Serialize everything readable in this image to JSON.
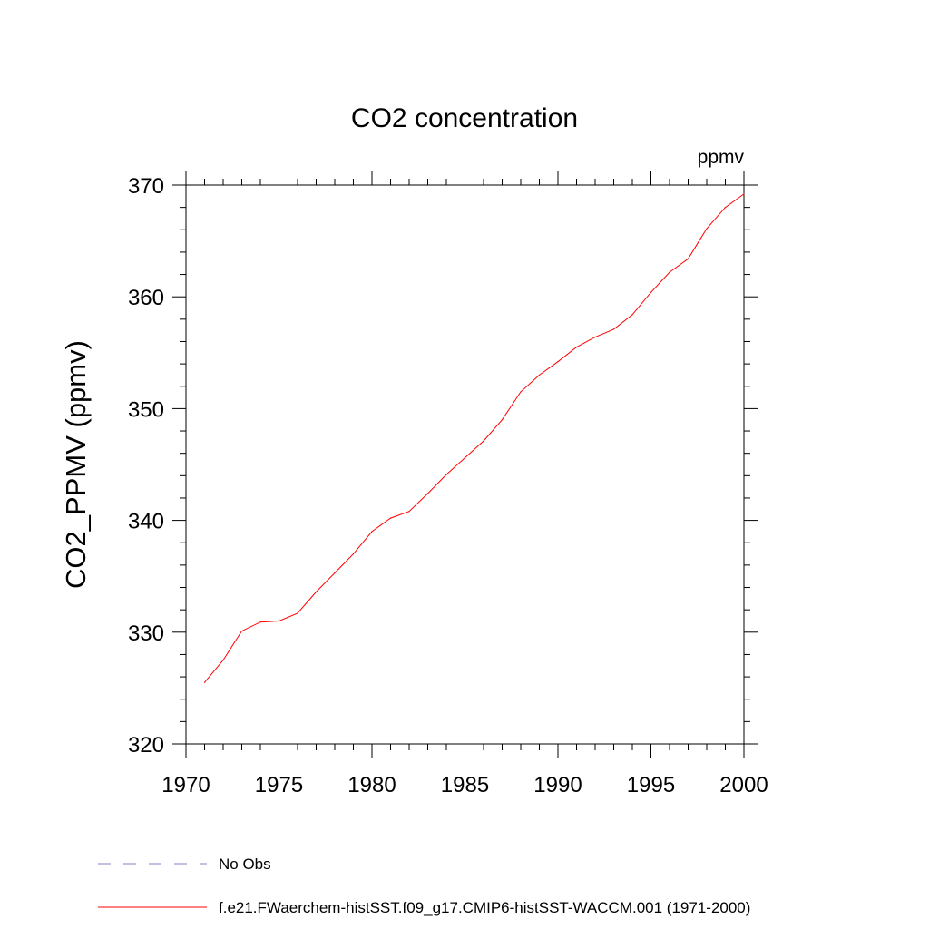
{
  "chart_data": {
    "type": "line",
    "title": "CO2 concentration",
    "units_label": "ppmv",
    "xlabel": "",
    "ylabel": "CO2_PPMV  (ppmv)",
    "xlim": [
      1970,
      2000
    ],
    "ylim": [
      320,
      370
    ],
    "x_ticks": [
      1970,
      1975,
      1980,
      1985,
      1990,
      1995,
      2000
    ],
    "y_ticks": [
      320,
      330,
      340,
      350,
      360,
      370
    ],
    "x_minor_step": 1,
    "y_minor_step": 2,
    "grid": false,
    "legend_placement": "bottom",
    "series": [
      {
        "name": "f.e21.FWaerchem-histSST.f09_g17.CMIP6-histSST-WACCM.001 (1971-2000)",
        "color": "#ff0000",
        "style": "solid",
        "x": [
          1971,
          1972,
          1973,
          1974,
          1975,
          1976,
          1977,
          1978,
          1979,
          1980,
          1981,
          1982,
          1983,
          1984,
          1985,
          1986,
          1987,
          1988,
          1989,
          1990,
          1991,
          1992,
          1993,
          1994,
          1995,
          1996,
          1997,
          1998,
          1999,
          2000
        ],
        "values": [
          325.5,
          327.5,
          330.1,
          330.9,
          331.0,
          331.7,
          333.6,
          335.3,
          337.0,
          339.0,
          340.2,
          340.8,
          342.4,
          344.1,
          345.6,
          347.1,
          349.0,
          351.5,
          353.0,
          354.2,
          355.5,
          356.4,
          357.1,
          358.4,
          360.4,
          362.2,
          363.4,
          366.1,
          368.0,
          369.2
        ]
      }
    ],
    "legend": [
      {
        "label": "No Obs",
        "color": "#8080c0",
        "style": "dashed"
      },
      {
        "label": "f.e21.FWaerchem-histSST.f09_g17.CMIP6-histSST-WACCM.001 (1971-2000)",
        "color": "#ff0000",
        "style": "solid"
      }
    ]
  }
}
